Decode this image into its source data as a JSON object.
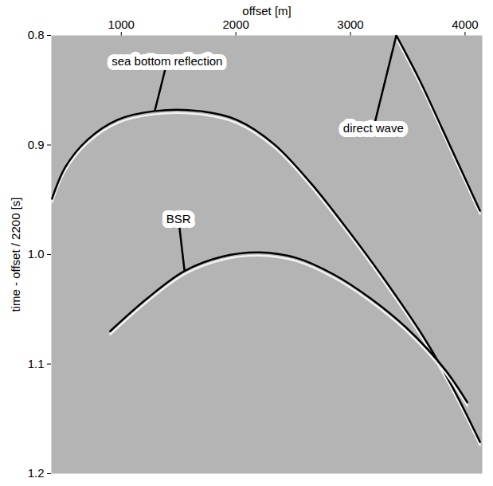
{
  "chart_data": {
    "type": "line",
    "x_label": "offset [m]",
    "y_label": "time - offset / 2200 [s]",
    "xlim": [
      390,
      4150
    ],
    "ylim": [
      0.8,
      1.2
    ],
    "xticks": [
      1000,
      2000,
      3000,
      4000
    ],
    "yticks": [
      0.8,
      0.9,
      {
        "value": 1,
        "label": "1.0"
      },
      1.1,
      1.2
    ],
    "series": [
      {
        "name": "sea bottom reflection",
        "color": "#000000",
        "x": [
          396,
          513,
          708,
          968,
          1292,
          1682,
          2006,
          2331,
          2656,
          2981,
          3305,
          3630,
          3890,
          4130
        ],
        "values": [
          0.949,
          0.92,
          0.895,
          0.877,
          0.869,
          0.869,
          0.877,
          0.899,
          0.935,
          0.978,
          1.024,
          1.074,
          1.121,
          1.171
        ]
      },
      {
        "name": "BSR",
        "color": "#000000",
        "x": [
          903,
          1227,
          1552,
          1877,
          2201,
          2526,
          2851,
          3175,
          3500,
          3825,
          4020
        ],
        "values": [
          1.07,
          1.04,
          1.015,
          1.002,
          0.998,
          1.003,
          1.018,
          1.04,
          1.068,
          1.105,
          1.135
        ]
      },
      {
        "name": "direct wave",
        "color": "#000000",
        "x": [
          3400,
          3600,
          3800,
          4130
        ],
        "values": [
          0.8,
          0.84,
          0.885,
          0.96
        ]
      }
    ],
    "annotations": [
      {
        "text": "sea bottom reflection",
        "x": 1400,
        "y": 0.824
      },
      {
        "text": "BSR",
        "x": 1500,
        "y": 0.968
      },
      {
        "text": "direct wave",
        "x": 3200,
        "y": 0.885
      }
    ]
  }
}
